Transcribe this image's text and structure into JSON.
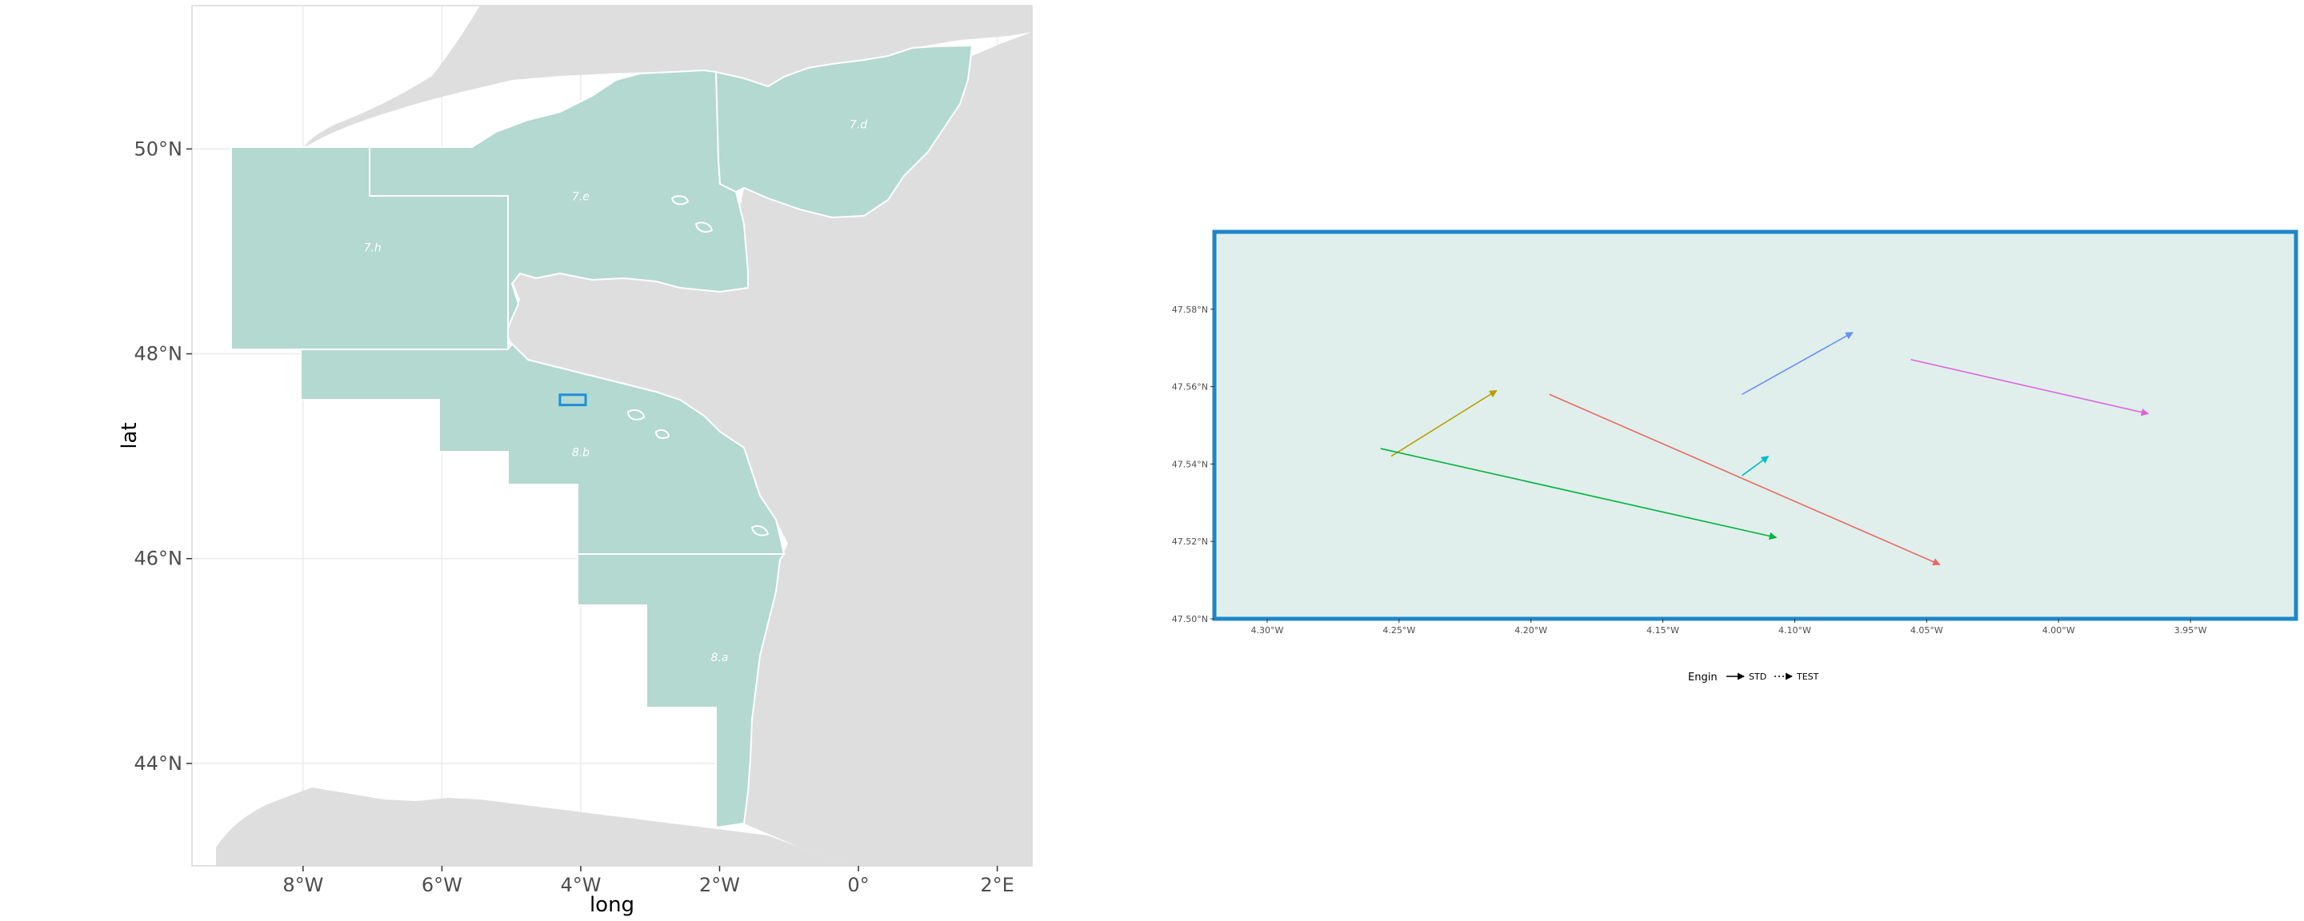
{
  "map_panel": {
    "x_axis_title": "long",
    "y_axis_title": "lat",
    "x_ticks": [
      {
        "value": -8,
        "label": "8°W"
      },
      {
        "value": -6,
        "label": "6°W"
      },
      {
        "value": -4,
        "label": "4°W"
      },
      {
        "value": -2,
        "label": "2°W"
      },
      {
        "value": 0,
        "label": "0°"
      },
      {
        "value": 2,
        "label": "2°E"
      }
    ],
    "y_ticks": [
      {
        "value": 44,
        "label": "44°N"
      },
      {
        "value": 46,
        "label": "46°N"
      },
      {
        "value": 48,
        "label": "48°N"
      },
      {
        "value": 50,
        "label": "50°N"
      }
    ],
    "xlim": [
      -9.6,
      2.5
    ],
    "ylim": [
      43,
      51.4
    ],
    "zone_labels": [
      {
        "text": "7.h",
        "lon": -7.0,
        "lat": 49.0
      },
      {
        "text": "7.e",
        "lon": -4.0,
        "lat": 49.5
      },
      {
        "text": "7.d",
        "lon": 0.0,
        "lat": 50.2
      },
      {
        "text": "8.b",
        "lon": -4.0,
        "lat": 47.0
      },
      {
        "text": "8.a",
        "lon": -2.0,
        "lat": 45.0
      }
    ],
    "highlight_box": {
      "lon_min": -4.3,
      "lon_max": -3.93,
      "lat_min": 47.5,
      "lat_max": 47.6
    },
    "colors": {
      "land": "#dedede",
      "zone": "#b3d9d1",
      "border": "#ffffff",
      "highlight": "#1e90d6"
    }
  },
  "zoom_panel": {
    "x_ticks": [
      {
        "value": -4.3,
        "label": "4.30°W"
      },
      {
        "value": -4.25,
        "label": "4.25°W"
      },
      {
        "value": -4.2,
        "label": "4.20°W"
      },
      {
        "value": -4.15,
        "label": "4.15°W"
      },
      {
        "value": -4.1,
        "label": "4.10°W"
      },
      {
        "value": -4.05,
        "label": "4.05°W"
      },
      {
        "value": -4.0,
        "label": "4.00°W"
      },
      {
        "value": -3.95,
        "label": "3.95°W"
      }
    ],
    "y_ticks": [
      {
        "value": 47.5,
        "label": "47.50°N"
      },
      {
        "value": 47.52,
        "label": "47.52°N"
      },
      {
        "value": 47.54,
        "label": "47.54°N"
      },
      {
        "value": 47.56,
        "label": "47.56°N"
      },
      {
        "value": 47.58,
        "label": "47.58°N"
      }
    ],
    "xlim": [
      -4.32,
      -3.91
    ],
    "ylim": [
      47.5,
      47.6
    ],
    "colors": {
      "background": "#e0efec",
      "frame": "#1e87c9"
    }
  },
  "chart_data": {
    "type": "line",
    "series": [
      {
        "color": "#b8a000",
        "from": [
          -4.253,
          47.542
        ],
        "to": [
          -4.213,
          47.559
        ]
      },
      {
        "color": "#00b33c",
        "from": [
          -4.257,
          47.544
        ],
        "to": [
          -4.107,
          47.521
        ]
      },
      {
        "color": "#00bcc4",
        "from": [
          -4.12,
          47.537
        ],
        "to": [
          -4.11,
          47.542
        ]
      },
      {
        "color": "#6a8ff0",
        "from": [
          -4.12,
          47.558
        ],
        "to": [
          -4.078,
          47.574
        ]
      },
      {
        "color": "#e86a5f",
        "from": [
          -4.193,
          47.558
        ],
        "to": [
          -4.045,
          47.514
        ]
      },
      {
        "color": "#de63de",
        "from": [
          -4.056,
          47.567
        ],
        "to": [
          -3.966,
          47.553
        ]
      }
    ]
  },
  "legend": {
    "title": "Engin",
    "items": [
      {
        "label": "STD",
        "line_style": "solid"
      },
      {
        "label": "TEST",
        "line_style": "dotted"
      }
    ]
  }
}
